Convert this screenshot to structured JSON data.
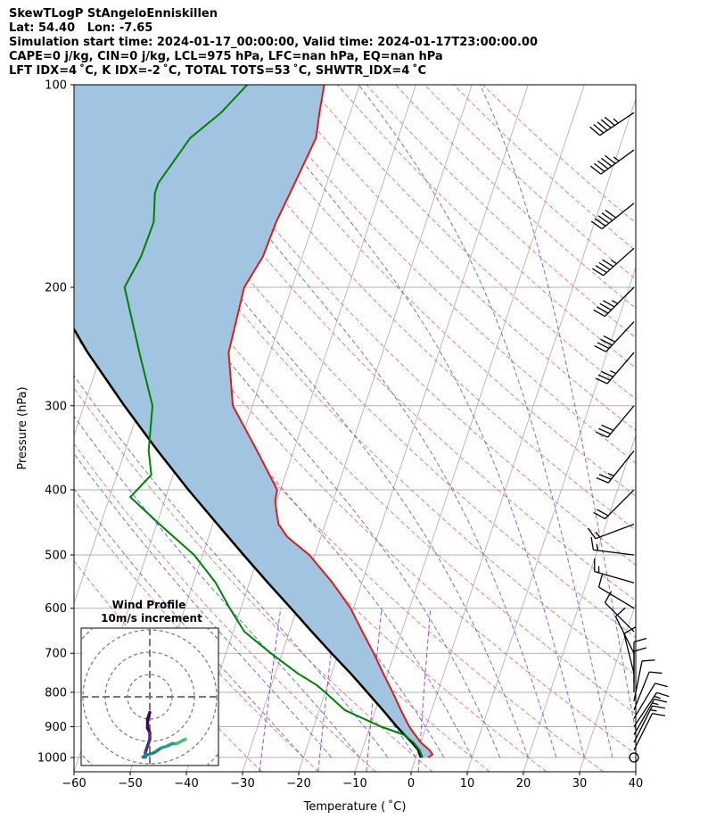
{
  "title_lines": [
    "SkewTLogP StAngeloEnniskillen",
    "Lat: 54.40   Lon: -7.65",
    "Simulation start time: 2024-01-17_00:00:00, Valid time: 2024-01-17T23:00:00.00",
    "CAPE=0 j/kg, CIN=0 j/kg, LCL=975 hPa, LFC=nan hPa, EQ=nan hPa",
    "LFT IDX=4 ˚C, K IDX=-2 ˚C, TOTAL TOTS=53 ˚C, SHWTR_IDX=4 ˚C"
  ],
  "chart_data": {
    "type": "line",
    "xlabel": "Temperature ( ˚C)",
    "ylabel": "Pressure (hPa)",
    "xlim": [
      -60,
      40
    ],
    "ylim": [
      1050,
      100
    ],
    "y_scale": "log",
    "x_ticks": [
      -60,
      -50,
      -40,
      -30,
      -20,
      -10,
      0,
      10,
      20,
      30,
      40
    ],
    "x_tick_labels": [
      "−60",
      "−50",
      "−40",
      "−30",
      "−20",
      "−10",
      "0",
      "10",
      "20",
      "30",
      "40"
    ],
    "y_ticks": [
      1000,
      900,
      800,
      700,
      600,
      500,
      400,
      300,
      200,
      100
    ],
    "y_tick_labels": [
      "1000",
      "900",
      "800",
      "700",
      "600",
      "500",
      "400",
      "300",
      "200",
      "100"
    ],
    "grid": true,
    "skew_note": "skewed temperature axis; isotherms slanted",
    "colors": {
      "temperature": "#e31a1c",
      "dewpoint": "#008000",
      "parcel": "#000000",
      "cape_fill": "#a1c5e0",
      "dry_adiabat": "#ff6060",
      "moist_adiabat": "#4a5eee",
      "mixing_ratio": "#9932cc",
      "isotherm": "#aaaaaa"
    },
    "series": [
      {
        "role": "temperature",
        "pressure": [
          1000,
          990,
          975,
          950,
          925,
          900,
          850,
          800,
          750,
          700,
          650,
          600,
          550,
          500,
          470,
          450,
          430,
          415,
          400,
          350,
          300,
          250,
          200,
          180,
          160,
          140,
          120,
          110,
          100
        ],
        "temperature": [
          2.2,
          2.8,
          2.0,
          0.0,
          -1.5,
          -3.0,
          -5.5,
          -8.0,
          -10.8,
          -13.7,
          -17.0,
          -20.5,
          -25.2,
          -31.0,
          -36.0,
          -38.3,
          -39.5,
          -40.3,
          -40.6,
          -46.5,
          -53.5,
          -57.4,
          -58.5,
          -57.0,
          -56.7,
          -55.7,
          -54.6,
          -55.5,
          -56.3
        ]
      },
      {
        "role": "dewpoint",
        "pressure": [
          1000,
          990,
          975,
          950,
          925,
          900,
          850,
          800,
          780,
          750,
          700,
          650,
          600,
          550,
          500,
          450,
          410,
          380,
          350,
          300,
          250,
          200,
          180,
          160,
          145,
          140,
          120,
          110,
          100
        ],
        "temperature": [
          1.2,
          0.8,
          0.2,
          -1.3,
          -3.5,
          -8.0,
          -15.5,
          -20.0,
          -22.0,
          -26.0,
          -32.0,
          -38.0,
          -42.0,
          -46.0,
          -51.5,
          -59.5,
          -66.3,
          -63.9,
          -65.8,
          -67.8,
          -73.3,
          -79.8,
          -78.7,
          -78.5,
          -80.0,
          -80.0,
          -77.0,
          -73.0,
          -70.0
        ]
      },
      {
        "role": "parcel",
        "pressure": [
          1000,
          990,
          975,
          950,
          925,
          900,
          850,
          800,
          750,
          700,
          650,
          600,
          550,
          500,
          450,
          400,
          350,
          300,
          250,
          200,
          180,
          160,
          140,
          120,
          110,
          100
        ],
        "temperature": [
          1.0,
          0.5,
          0.0,
          -1.6,
          -3.4,
          -5.2,
          -8.7,
          -12.5,
          -16.6,
          -21.2,
          -26.0,
          -31.1,
          -36.7,
          -42.7,
          -49.2,
          -56.4,
          -64.2,
          -72.8,
          -82.5,
          -93.2,
          -99.3,
          -105.3,
          -111.8,
          -119.5,
          -124.5,
          -129.3
        ]
      }
    ],
    "wind_barbs": {
      "pressure": [
        1000,
        975,
        950,
        925,
        900,
        875,
        850,
        825,
        800,
        775,
        750,
        700,
        650,
        600,
        550,
        500,
        450,
        400,
        350,
        300,
        250,
        225,
        200,
        175,
        150,
        125,
        110
      ],
      "u": [
        0,
        -2,
        -3,
        -4,
        -4,
        -3,
        -2,
        -1,
        0,
        0,
        1,
        2,
        4,
        5,
        7,
        8,
        8,
        8,
        8,
        10,
        12,
        14,
        16,
        18,
        20,
        22,
        24
      ],
      "v": [
        0,
        -4,
        -6,
        -7,
        -6,
        -5,
        -5,
        -5,
        -4,
        -4,
        -4,
        -4,
        -4,
        -3,
        -2,
        -1,
        3,
        8,
        10,
        12,
        14,
        15,
        16,
        16,
        16,
        16,
        16
      ]
    },
    "hodograph": {
      "title": "Wind Profile",
      "subtitle": "10m/s increment",
      "ring_step_ms": 10,
      "u": [
        0,
        -1,
        -1,
        0,
        0,
        -1,
        -2,
        -2,
        -3,
        -3,
        -1,
        2,
        5,
        8,
        10,
        12,
        14,
        16
      ],
      "v": [
        -7,
        -10,
        -14,
        -16,
        -19,
        -22,
        -25,
        -27,
        -27,
        -27,
        -26,
        -25,
        -23,
        -22,
        -21,
        -21,
        -20,
        -19
      ]
    }
  }
}
